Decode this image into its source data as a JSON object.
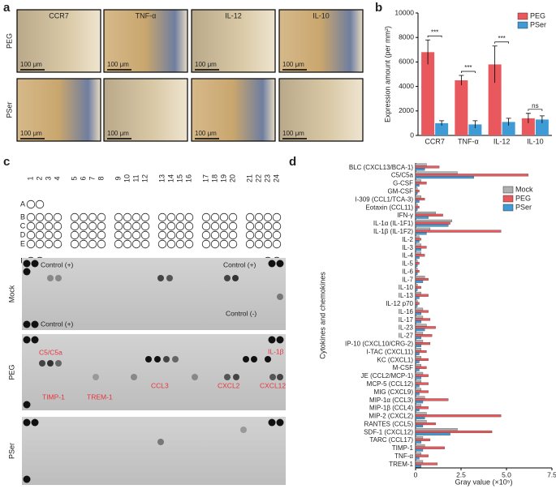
{
  "panel_labels": [
    "a",
    "b",
    "c",
    "d"
  ],
  "micrographs": {
    "columns": [
      "CCR7",
      "TNF-α",
      "IL-12",
      "IL-10"
    ],
    "rows": [
      "PEG",
      "PSer"
    ],
    "scale_bar": "100 μm"
  },
  "array": {
    "column_numbers": [
      1,
      2,
      3,
      4,
      5,
      6,
      7,
      8,
      9,
      10,
      11,
      12,
      13,
      14,
      15,
      16,
      17,
      18,
      19,
      20,
      21,
      22,
      23,
      24
    ],
    "row_letters": [
      "A",
      "B",
      "C",
      "D",
      "E",
      "F"
    ],
    "blots": [
      {
        "name": "Mock",
        "labels": [
          "Control (+)",
          "Control (+)",
          "Control (+)",
          "Control (-)"
        ]
      },
      {
        "name": "PEG",
        "labels": [
          "C5/C5a",
          "IL-1β",
          "TIMP-1",
          "TREM-1",
          "CCL3",
          "CXCL2",
          "CXCL12"
        ]
      },
      {
        "name": "PSer",
        "labels": []
      }
    ]
  },
  "chart_data": [
    {
      "type": "bar",
      "categories": [
        "CCR7",
        "TNF-α",
        "IL-12",
        "IL-10"
      ],
      "series": [
        {
          "name": "PEG",
          "color": "#e8585c",
          "values": [
            6800,
            4500,
            5800,
            1400
          ],
          "errors": [
            1000,
            400,
            1500,
            400
          ]
        },
        {
          "name": "PSer",
          "color": "#3e9bd6",
          "values": [
            1000,
            900,
            1100,
            1300
          ],
          "errors": [
            200,
            300,
            300,
            300
          ]
        }
      ],
      "annotations": [
        "***",
        "***",
        "***",
        "ns"
      ],
      "ylabel": "Expression amount (per mm²)",
      "ylim": [
        0,
        10000
      ],
      "yticks": [
        0,
        2000,
        4000,
        6000,
        8000,
        10000
      ],
      "legend": "upper right"
    },
    {
      "type": "barh",
      "categories": [
        "BLC (CXCL13/BCA-1)",
        "C5/C5a",
        "G-CSF",
        "GM-CSF",
        "I-309 (CCL1/TCA-3)",
        "Eotaxin (CCL11)",
        "IFN-γ",
        "IL-1α (IL-1F1)",
        "IL-1β (IL-1F2)",
        "IL-2",
        "IL-3",
        "IL-4",
        "IL-5",
        "IL-6",
        "IL-7",
        "IL-10",
        "IL-13",
        "IL-12 p70",
        "IL-16",
        "IL-17",
        "IL-23",
        "IL-27",
        "IP-10 (CXCL10/CRG-2)",
        "I-TAC (CXCL11)",
        "KC (CXCL1)",
        "M-CSF",
        "JE (CCL2/MCP-1)",
        "MCP-5 (CCL12)",
        "MIG (CXCL9)",
        "MIP-1α (CCL3)",
        "MIP-1β (CCL4)",
        "MIP-2 (CXCL2)",
        "RANTES (CCL5)",
        "SDF-1 (CXCL12)",
        "TARC (CCL17)",
        "TIMP-1",
        "TNF-α",
        "TREM-1"
      ],
      "series": [
        {
          "name": "Mock",
          "color": "#b0b0b0",
          "values": [
            0.6,
            2.3,
            0.3,
            0.1,
            0.3,
            0.1,
            1.1,
            2.0,
            0.8,
            0.2,
            0.3,
            0.3,
            0.1,
            0.1,
            0.5,
            0.1,
            0.3,
            0.1,
            0.4,
            0.4,
            0.6,
            0.4,
            0.4,
            0.3,
            0.3,
            0.3,
            0.4,
            0.3,
            0.3,
            0.5,
            0.3,
            0.6,
            0.6,
            2.3,
            0.4,
            0.5,
            0.3,
            0.4
          ]
        },
        {
          "name": "PEG",
          "color": "#e8585c",
          "values": [
            1.3,
            6.2,
            0.6,
            0.2,
            0.5,
            0.2,
            1.5,
            1.9,
            4.7,
            0.3,
            0.6,
            0.5,
            0.2,
            0.2,
            0.7,
            0.3,
            0.7,
            0.2,
            0.7,
            0.8,
            1.1,
            0.9,
            0.8,
            0.6,
            0.7,
            0.6,
            0.7,
            0.7,
            0.7,
            1.8,
            0.7,
            4.7,
            1.1,
            4.2,
            0.8,
            1.6,
            0.7,
            1.2
          ]
        },
        {
          "name": "PSer",
          "color": "#3e9bd6",
          "values": [
            0.5,
            3.2,
            0.2,
            0.1,
            0.2,
            0.1,
            0.7,
            1.8,
            0.6,
            0.2,
            0.3,
            0.2,
            0.1,
            0.1,
            0.4,
            0.1,
            0.2,
            0.1,
            0.3,
            0.3,
            0.5,
            0.3,
            0.3,
            0.2,
            0.2,
            0.2,
            0.3,
            0.2,
            0.2,
            0.4,
            0.2,
            0.5,
            0.4,
            1.9,
            0.3,
            0.4,
            0.2,
            0.3
          ]
        }
      ],
      "xlabel": "Gray value (×10⁵)",
      "ylabel": "Cytokines and chemokines",
      "xlim": [
        0,
        7.5
      ],
      "xticks": [
        0,
        2.5,
        {
          "value": 5,
          "label": "5.0"
        },
        7.5
      ],
      "legend": "upper right"
    }
  ]
}
